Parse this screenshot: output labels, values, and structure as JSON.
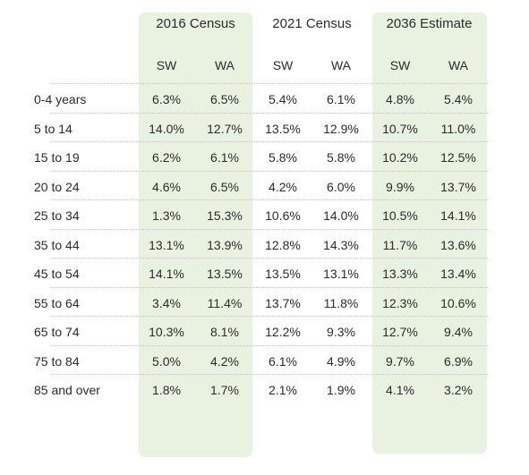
{
  "groups": [
    "2016 Census",
    "2021 Census",
    "2036 Estimate"
  ],
  "subheaders": [
    "SW",
    "WA",
    "SW",
    "WA",
    "SW",
    "WA"
  ],
  "rows": [
    {
      "label": "0-4 years",
      "values": [
        "6.3%",
        "6.5%",
        "5.4%",
        "6.1%",
        "4.8%",
        "5.4%"
      ]
    },
    {
      "label": "5 to 14",
      "values": [
        "14.0%",
        "12.7%",
        "13.5%",
        "12.9%",
        "10.7%",
        "11.0%"
      ]
    },
    {
      "label": "15 to 19",
      "values": [
        "6.2%",
        "6.1%",
        "5.8%",
        "5.8%",
        "10.2%",
        "12.5%"
      ]
    },
    {
      "label": "20 to 24",
      "values": [
        "4.6%",
        "6.5%",
        "4.2%",
        "6.0%",
        "9.9%",
        "13.7%"
      ]
    },
    {
      "label": "25 to 34",
      "values": [
        "1.3%",
        "15.3%",
        "10.6%",
        "14.0%",
        "10.5%",
        "14.1%"
      ]
    },
    {
      "label": "35 to 44",
      "values": [
        "13.1%",
        "13.9%",
        "12.8%",
        "14.3%",
        "11.7%",
        "13.6%"
      ]
    },
    {
      "label": "45 to 54",
      "values": [
        "14.1%",
        "13.5%",
        "13.5%",
        "13.1%",
        "13.3%",
        "13.4%"
      ]
    },
    {
      "label": "55 to 64",
      "values": [
        "3.4%",
        "11.4%",
        "13.7%",
        "11.8%",
        "12.3%",
        "10.6%"
      ]
    },
    {
      "label": "65 to 74",
      "values": [
        "10.3%",
        "8.1%",
        "12.2%",
        "9.3%",
        "12.7%",
        "9.4%"
      ]
    },
    {
      "label": "75 to 84",
      "values": [
        "5.0%",
        "4.2%",
        "6.1%",
        "4.9%",
        "9.7%",
        "6.9%"
      ]
    },
    {
      "label": "85 and over",
      "values": [
        "1.8%",
        "1.7%",
        "2.1%",
        "1.9%",
        "4.1%",
        "3.2%"
      ]
    }
  ],
  "colors": {
    "highlight": "#e9f1e0",
    "text": "#2b2b2b",
    "separator": "#c3c3c3"
  }
}
